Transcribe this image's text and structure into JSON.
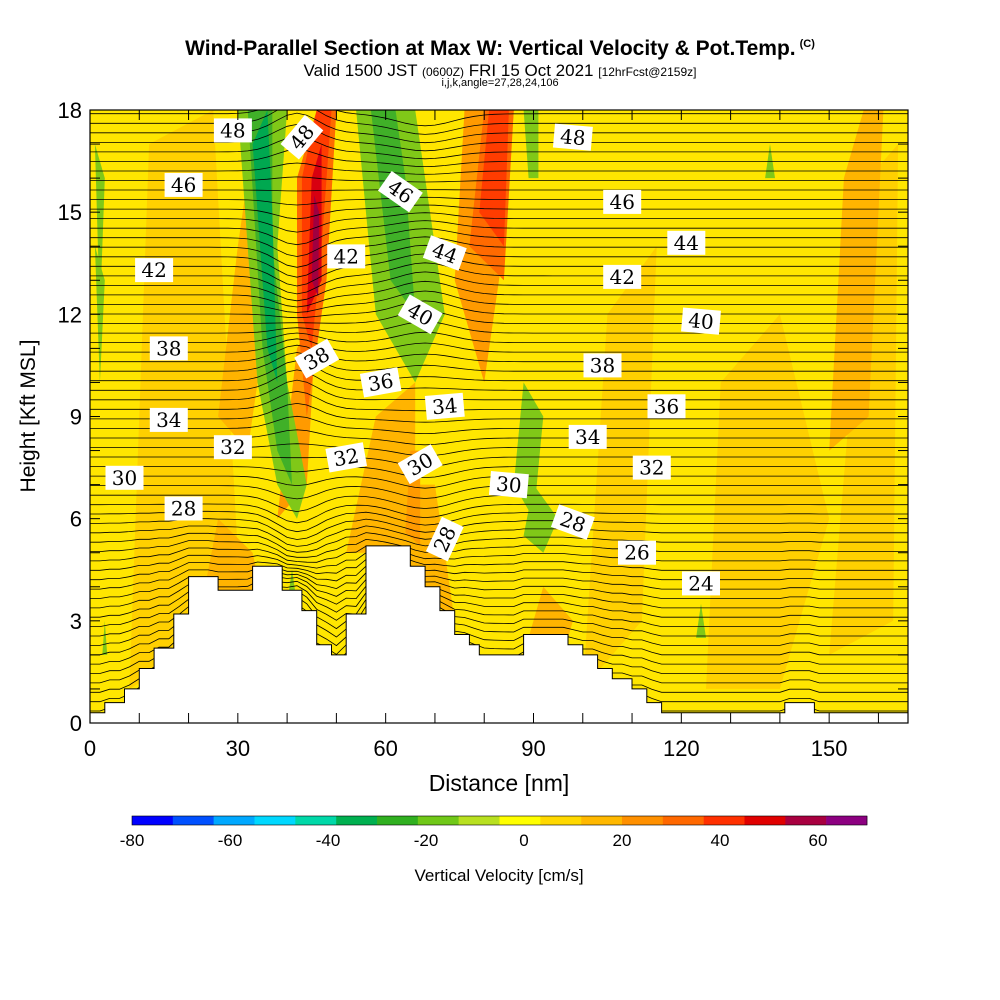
{
  "header": {
    "title": "Wind-Parallel Section at Max W: Vertical Velocity & Pot.Temp.",
    "copyright": "(C)",
    "valid_prefix": "Valid 1500 JST",
    "valid_utc": "(0600Z)",
    "valid_date": "FRI 15 Oct 2021",
    "forecast": "[12hrFcst@2159z]",
    "indices": "i,j,k,angle=27,28,24,106"
  },
  "chart_data": {
    "type": "heatmap",
    "xlabel": "Distance [nm]",
    "ylabel": "Height [Kft MSL]",
    "xlim": [
      0,
      166
    ],
    "ylim": [
      0,
      18
    ],
    "x_ticks": [
      0,
      30,
      60,
      90,
      120,
      150
    ],
    "y_ticks": [
      0,
      3,
      6,
      9,
      12,
      15,
      18
    ],
    "colorbar": {
      "label": "Vertical Velocity [cm/s]",
      "tick_labels": [
        -80,
        -60,
        -40,
        -20,
        0,
        20,
        40,
        60
      ],
      "bounds": [
        -80,
        70
      ],
      "colors": [
        "#0000ff",
        "#0050ff",
        "#00a8ff",
        "#00d8ff",
        "#00d8a8",
        "#00b050",
        "#30b020",
        "#70c818",
        "#b8e020",
        "#ffff00",
        "#ffd800",
        "#ffb800",
        "#ff9000",
        "#ff6800",
        "#ff3000",
        "#e00000",
        "#a80040",
        "#8c0080"
      ]
    },
    "terrain": [
      [
        0,
        0.3
      ],
      [
        3,
        0.3
      ],
      [
        3,
        0.6
      ],
      [
        7,
        0.6
      ],
      [
        7,
        1.0
      ],
      [
        10,
        1.0
      ],
      [
        10,
        1.6
      ],
      [
        13,
        1.6
      ],
      [
        13,
        2.2
      ],
      [
        17,
        2.2
      ],
      [
        17,
        3.2
      ],
      [
        20,
        3.2
      ],
      [
        20,
        4.3
      ],
      [
        26,
        4.3
      ],
      [
        26,
        3.9
      ],
      [
        33,
        3.9
      ],
      [
        33,
        4.6
      ],
      [
        39,
        4.6
      ],
      [
        39,
        3.9
      ],
      [
        43,
        3.9
      ],
      [
        43,
        3.3
      ],
      [
        46,
        3.3
      ],
      [
        46,
        2.3
      ],
      [
        49,
        2.3
      ],
      [
        49,
        2.0
      ],
      [
        52,
        2.0
      ],
      [
        52,
        3.2
      ],
      [
        56,
        3.2
      ],
      [
        56,
        5.2
      ],
      [
        65,
        5.2
      ],
      [
        65,
        4.6
      ],
      [
        68,
        4.6
      ],
      [
        68,
        4.0
      ],
      [
        71,
        4.0
      ],
      [
        71,
        3.3
      ],
      [
        74,
        3.3
      ],
      [
        74,
        2.6
      ],
      [
        77,
        2.6
      ],
      [
        77,
        2.3
      ],
      [
        79,
        2.3
      ],
      [
        79,
        2.0
      ],
      [
        88,
        2.0
      ],
      [
        88,
        2.6
      ],
      [
        97,
        2.6
      ],
      [
        97,
        2.3
      ],
      [
        100,
        2.3
      ],
      [
        100,
        2.0
      ],
      [
        103,
        2.0
      ],
      [
        103,
        1.6
      ],
      [
        106,
        1.6
      ],
      [
        106,
        1.3
      ],
      [
        110,
        1.3
      ],
      [
        110,
        1.0
      ],
      [
        113,
        1.0
      ],
      [
        113,
        0.6
      ],
      [
        116,
        0.6
      ],
      [
        116,
        0.3
      ],
      [
        141,
        0.3
      ],
      [
        141,
        0.6
      ],
      [
        147,
        0.6
      ],
      [
        147,
        0.3
      ],
      [
        166,
        0.3
      ]
    ],
    "contour_labels": [
      {
        "x": 29,
        "y": 17.4,
        "text": "48",
        "angle": 0
      },
      {
        "x": 43,
        "y": 17.2,
        "text": "48",
        "angle": -50
      },
      {
        "x": 98,
        "y": 17.2,
        "text": "48",
        "angle": 5
      },
      {
        "x": 19,
        "y": 15.8,
        "text": "46",
        "angle": 0
      },
      {
        "x": 63,
        "y": 15.6,
        "text": "46",
        "angle": 35
      },
      {
        "x": 108,
        "y": 15.3,
        "text": "46",
        "angle": 0
      },
      {
        "x": 72,
        "y": 13.8,
        "text": "44",
        "angle": 20
      },
      {
        "x": 121,
        "y": 14.1,
        "text": "44",
        "angle": 0
      },
      {
        "x": 13,
        "y": 13.3,
        "text": "42",
        "angle": 0
      },
      {
        "x": 52,
        "y": 13.7,
        "text": "42",
        "angle": 0
      },
      {
        "x": 108,
        "y": 13.1,
        "text": "42",
        "angle": 0
      },
      {
        "x": 67,
        "y": 12.0,
        "text": "40",
        "angle": 30
      },
      {
        "x": 124,
        "y": 11.8,
        "text": "40",
        "angle": 5
      },
      {
        "x": 16,
        "y": 11.0,
        "text": "38",
        "angle": 0
      },
      {
        "x": 46,
        "y": 10.7,
        "text": "38",
        "angle": -30
      },
      {
        "x": 104,
        "y": 10.5,
        "text": "38",
        "angle": 0
      },
      {
        "x": 59,
        "y": 10.0,
        "text": "36",
        "angle": -10
      },
      {
        "x": 117,
        "y": 9.3,
        "text": "36",
        "angle": 0
      },
      {
        "x": 16,
        "y": 8.9,
        "text": "34",
        "angle": 0
      },
      {
        "x": 72,
        "y": 9.3,
        "text": "34",
        "angle": -5
      },
      {
        "x": 101,
        "y": 8.4,
        "text": "34",
        "angle": 0
      },
      {
        "x": 29,
        "y": 8.1,
        "text": "32",
        "angle": 0
      },
      {
        "x": 52,
        "y": 7.8,
        "text": "32",
        "angle": -10
      },
      {
        "x": 114,
        "y": 7.5,
        "text": "32",
        "angle": 0
      },
      {
        "x": 7,
        "y": 7.2,
        "text": "30",
        "angle": 0
      },
      {
        "x": 67,
        "y": 7.6,
        "text": "30",
        "angle": -30
      },
      {
        "x": 85,
        "y": 7.0,
        "text": "30",
        "angle": 5
      },
      {
        "x": 19,
        "y": 6.3,
        "text": "28",
        "angle": 0
      },
      {
        "x": 72,
        "y": 5.4,
        "text": "28",
        "angle": -65
      },
      {
        "x": 98,
        "y": 5.9,
        "text": "28",
        "angle": 20
      },
      {
        "x": 111,
        "y": 5.0,
        "text": "26",
        "angle": 0
      },
      {
        "x": 124,
        "y": 4.1,
        "text": "24",
        "angle": 0
      }
    ]
  }
}
